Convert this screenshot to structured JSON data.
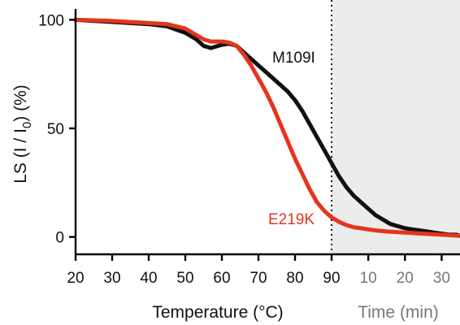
{
  "chart_data": {
    "type": "scatter",
    "xlabel": "Temperature (°C)",
    "secondary_xlabel": "Time (min)",
    "ylabel": "LS (I / I₀) (%)",
    "ylabel_parts": {
      "base": "LS (I / I",
      "sub": "0",
      "tail": ") (%)"
    },
    "temperature_range": [
      20,
      90
    ],
    "time_range": [
      0,
      35
    ],
    "ylim": [
      -8,
      105
    ],
    "x_ticks": [
      "20",
      "30",
      "40",
      "50",
      "60",
      "70",
      "80",
      "90"
    ],
    "time_ticks": [
      "10",
      "20",
      "30"
    ],
    "y_ticks": [
      "0",
      "50",
      "100"
    ],
    "grid": false,
    "shaded_region": {
      "label": "Time (min)",
      "color": "#ececec"
    },
    "divider_at_temperature": 90,
    "series": [
      {
        "name": "M109I",
        "color": "#111111",
        "temperature_points": [
          [
            20,
            100
          ],
          [
            25,
            99.5
          ],
          [
            30,
            99
          ],
          [
            35,
            98.5
          ],
          [
            40,
            98
          ],
          [
            45,
            97
          ],
          [
            50,
            94
          ],
          [
            53,
            91
          ],
          [
            55,
            88
          ],
          [
            57,
            87
          ],
          [
            60,
            88.5
          ],
          [
            62,
            89
          ],
          [
            64,
            88
          ],
          [
            66,
            85
          ],
          [
            68,
            82
          ],
          [
            70,
            79
          ],
          [
            72,
            76
          ],
          [
            74,
            73
          ],
          [
            76,
            70
          ],
          [
            78,
            67
          ],
          [
            80,
            63
          ],
          [
            82,
            58
          ],
          [
            84,
            52
          ],
          [
            86,
            46
          ],
          [
            88,
            40
          ],
          [
            90,
            34
          ]
        ],
        "time_points": [
          [
            0,
            34
          ],
          [
            2,
            28
          ],
          [
            4,
            23
          ],
          [
            6,
            19
          ],
          [
            8,
            16
          ],
          [
            10,
            13
          ],
          [
            12,
            10
          ],
          [
            14,
            8
          ],
          [
            16,
            6
          ],
          [
            18,
            5
          ],
          [
            20,
            4
          ],
          [
            22,
            3.5
          ],
          [
            24,
            3
          ],
          [
            26,
            2.5
          ],
          [
            28,
            2
          ],
          [
            30,
            1.5
          ],
          [
            32,
            1
          ],
          [
            34,
            1
          ],
          [
            35,
            0.5
          ]
        ]
      },
      {
        "name": "E219K",
        "color": "#e5341f",
        "temperature_points": [
          [
            20,
            100
          ],
          [
            30,
            99.5
          ],
          [
            40,
            98.5
          ],
          [
            45,
            98
          ],
          [
            50,
            96
          ],
          [
            53,
            93
          ],
          [
            55,
            91
          ],
          [
            57,
            90
          ],
          [
            60,
            90
          ],
          [
            62,
            89.5
          ],
          [
            64,
            88
          ],
          [
            66,
            84
          ],
          [
            68,
            79
          ],
          [
            70,
            73
          ],
          [
            72,
            67
          ],
          [
            74,
            60
          ],
          [
            76,
            52
          ],
          [
            78,
            44
          ],
          [
            80,
            36
          ],
          [
            82,
            29
          ],
          [
            84,
            22
          ],
          [
            86,
            16
          ],
          [
            88,
            12
          ],
          [
            90,
            9
          ]
        ],
        "time_points": [
          [
            0,
            9
          ],
          [
            2,
            7
          ],
          [
            4,
            5.5
          ],
          [
            6,
            4.5
          ],
          [
            8,
            4
          ],
          [
            10,
            3.5
          ],
          [
            12,
            3
          ],
          [
            15,
            2.5
          ],
          [
            20,
            2
          ],
          [
            25,
            1.5
          ],
          [
            30,
            1
          ],
          [
            35,
            0.5
          ]
        ]
      }
    ]
  }
}
